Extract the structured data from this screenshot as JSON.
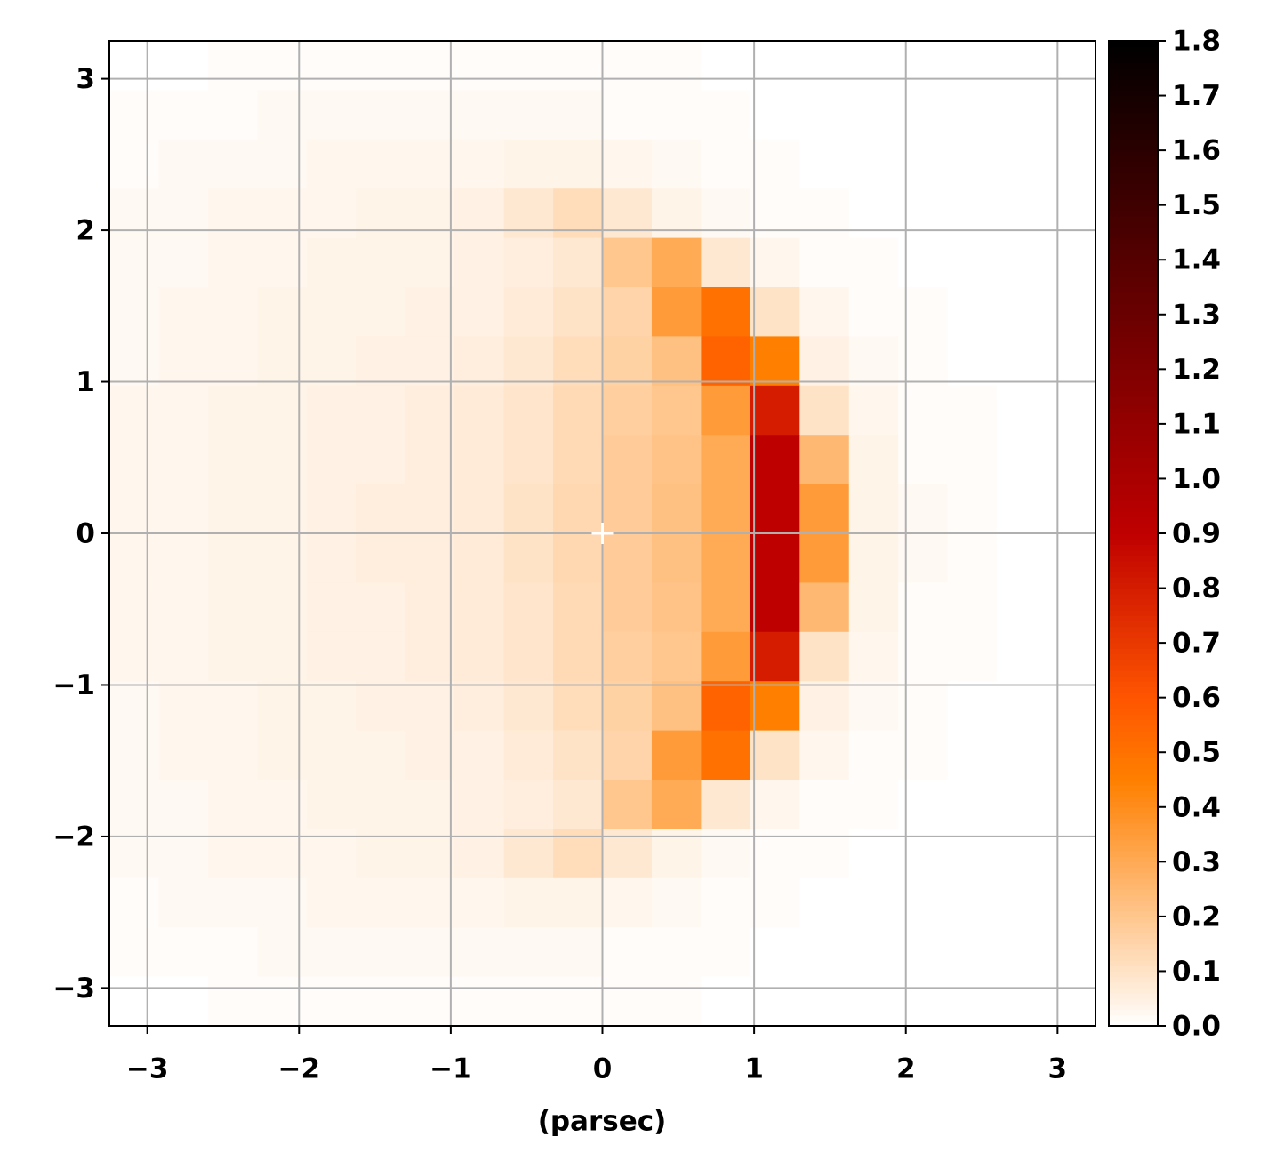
{
  "chart_data": {
    "type": "heatmap",
    "xlabel": "(parsec)",
    "xlim": [
      -3.25,
      3.25
    ],
    "ylim": [
      -3.25,
      3.25
    ],
    "xticks": [
      {
        "value": -3,
        "label": "−3"
      },
      {
        "value": -2,
        "label": "−2"
      },
      {
        "value": -1,
        "label": "−1"
      },
      0,
      1,
      2,
      3
    ],
    "yticks": [
      {
        "value": -3,
        "label": "−3"
      },
      {
        "value": -2,
        "label": "−2"
      },
      {
        "value": -1,
        "label": "−1"
      },
      0,
      1,
      2,
      3
    ],
    "grid": true,
    "grid_color": "#b0b0b0",
    "colormap": "gist_heat_r",
    "clim": [
      0,
      1.8
    ],
    "cticks": [
      {
        "value": 0,
        "label": "0.0"
      },
      0.1,
      0.2,
      0.3,
      0.4,
      0.5,
      0.6,
      0.7,
      0.8,
      0.9,
      {
        "value": 1,
        "label": "1.0"
      },
      1.1,
      1.2,
      1.3,
      1.4,
      1.5,
      1.6,
      1.7,
      1.8
    ],
    "marker": {
      "x": 0,
      "y": 0,
      "color": "#ffffff"
    },
    "z": [
      [
        0,
        0,
        0.01,
        0.01,
        0.01,
        0.01,
        0.01,
        0.01,
        0.01,
        0.01,
        0.01,
        0.01,
        0,
        0,
        0,
        0,
        0,
        0,
        0,
        0
      ],
      [
        0.01,
        0.01,
        0.01,
        0.02,
        0.02,
        0.02,
        0.02,
        0.02,
        0.02,
        0.02,
        0.01,
        0.01,
        0.01,
        0,
        0,
        0,
        0,
        0,
        0,
        0
      ],
      [
        0.01,
        0.02,
        0.02,
        0.02,
        0.03,
        0.03,
        0.03,
        0.03,
        0.04,
        0.04,
        0.03,
        0.02,
        0.01,
        0.01,
        0,
        0,
        0,
        0,
        0,
        0
      ],
      [
        0.02,
        0.02,
        0.03,
        0.03,
        0.03,
        0.04,
        0.04,
        0.05,
        0.08,
        0.12,
        0.08,
        0.04,
        0.02,
        0.01,
        0.01,
        0,
        0,
        0,
        0,
        0
      ],
      [
        0.02,
        0.02,
        0.03,
        0.03,
        0.04,
        0.04,
        0.04,
        0.05,
        0.06,
        0.08,
        0.2,
        0.3,
        0.08,
        0.03,
        0.01,
        0.01,
        0,
        0,
        0,
        0
      ],
      [
        0.02,
        0.03,
        0.03,
        0.04,
        0.04,
        0.04,
        0.05,
        0.05,
        0.07,
        0.1,
        0.15,
        0.35,
        0.5,
        0.1,
        0.03,
        0.01,
        0.01,
        0,
        0,
        0
      ],
      [
        0.02,
        0.03,
        0.03,
        0.04,
        0.04,
        0.05,
        0.05,
        0.06,
        0.08,
        0.12,
        0.16,
        0.22,
        0.55,
        0.45,
        0.05,
        0.02,
        0.01,
        0,
        0,
        0
      ],
      [
        0.03,
        0.03,
        0.04,
        0.04,
        0.05,
        0.05,
        0.06,
        0.07,
        0.09,
        0.13,
        0.17,
        0.2,
        0.35,
        0.8,
        0.1,
        0.03,
        0.01,
        0.01,
        0,
        0
      ],
      [
        0.03,
        0.03,
        0.04,
        0.04,
        0.05,
        0.05,
        0.06,
        0.07,
        0.09,
        0.13,
        0.18,
        0.21,
        0.3,
        0.9,
        0.25,
        0.04,
        0.01,
        0.01,
        0,
        0
      ],
      [
        0.03,
        0.03,
        0.04,
        0.04,
        0.05,
        0.06,
        0.06,
        0.07,
        0.1,
        0.14,
        0.18,
        0.22,
        0.3,
        0.9,
        0.35,
        0.04,
        0.02,
        0.01,
        0,
        0
      ],
      [
        0.03,
        0.03,
        0.04,
        0.04,
        0.05,
        0.06,
        0.06,
        0.07,
        0.1,
        0.14,
        0.18,
        0.22,
        0.3,
        0.9,
        0.35,
        0.04,
        0.02,
        0.01,
        0,
        0
      ],
      [
        0.03,
        0.03,
        0.04,
        0.04,
        0.05,
        0.05,
        0.06,
        0.07,
        0.09,
        0.13,
        0.18,
        0.21,
        0.3,
        0.9,
        0.25,
        0.04,
        0.01,
        0.01,
        0,
        0
      ],
      [
        0.03,
        0.03,
        0.04,
        0.04,
        0.05,
        0.05,
        0.06,
        0.07,
        0.09,
        0.13,
        0.17,
        0.2,
        0.35,
        0.8,
        0.1,
        0.03,
        0.01,
        0.01,
        0,
        0
      ],
      [
        0.02,
        0.03,
        0.03,
        0.04,
        0.04,
        0.05,
        0.05,
        0.06,
        0.08,
        0.12,
        0.16,
        0.22,
        0.55,
        0.45,
        0.05,
        0.02,
        0.01,
        0,
        0,
        0
      ],
      [
        0.02,
        0.03,
        0.03,
        0.04,
        0.04,
        0.04,
        0.05,
        0.05,
        0.07,
        0.1,
        0.15,
        0.35,
        0.5,
        0.1,
        0.03,
        0.01,
        0.01,
        0,
        0,
        0
      ],
      [
        0.02,
        0.02,
        0.03,
        0.03,
        0.04,
        0.04,
        0.04,
        0.05,
        0.06,
        0.08,
        0.2,
        0.3,
        0.08,
        0.03,
        0.01,
        0.01,
        0,
        0,
        0,
        0
      ],
      [
        0.02,
        0.02,
        0.03,
        0.03,
        0.03,
        0.04,
        0.04,
        0.05,
        0.08,
        0.12,
        0.08,
        0.04,
        0.02,
        0.01,
        0.01,
        0,
        0,
        0,
        0,
        0
      ],
      [
        0.01,
        0.02,
        0.02,
        0.02,
        0.03,
        0.03,
        0.03,
        0.03,
        0.04,
        0.04,
        0.03,
        0.02,
        0.01,
        0.01,
        0,
        0,
        0,
        0,
        0,
        0
      ],
      [
        0.01,
        0.01,
        0.01,
        0.02,
        0.02,
        0.02,
        0.02,
        0.02,
        0.02,
        0.02,
        0.01,
        0.01,
        0.01,
        0,
        0,
        0,
        0,
        0,
        0,
        0
      ],
      [
        0,
        0,
        0.01,
        0.01,
        0.01,
        0.01,
        0.01,
        0.01,
        0.01,
        0.01,
        0.01,
        0.01,
        0,
        0,
        0,
        0,
        0,
        0,
        0,
        0
      ]
    ]
  }
}
